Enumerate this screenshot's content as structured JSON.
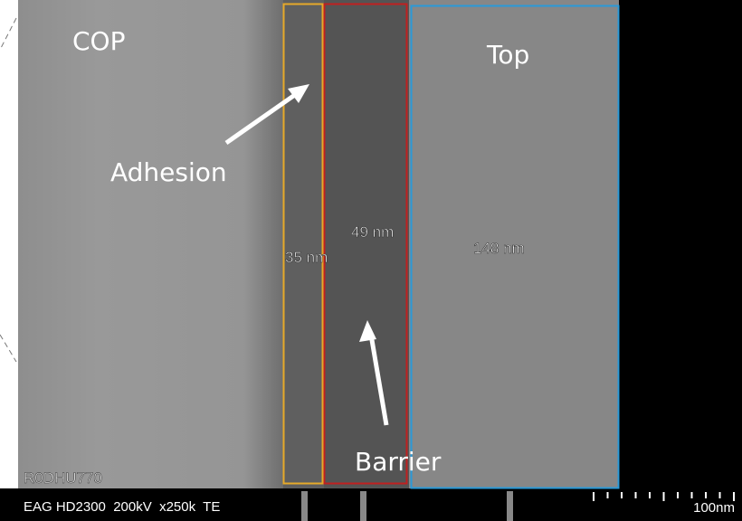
{
  "regions": {
    "substrate": "COP",
    "top": "Top",
    "adhesion": "Adhesion",
    "barrier": "Barrier"
  },
  "thickness": {
    "adhesion": "35 nm",
    "barrier": "49 nm",
    "top": "148 nm"
  },
  "footer": {
    "sample_id": "R0DHU770",
    "instrument": "EAG HD2300  200kV  x250k  TE",
    "scale": "100nm"
  }
}
